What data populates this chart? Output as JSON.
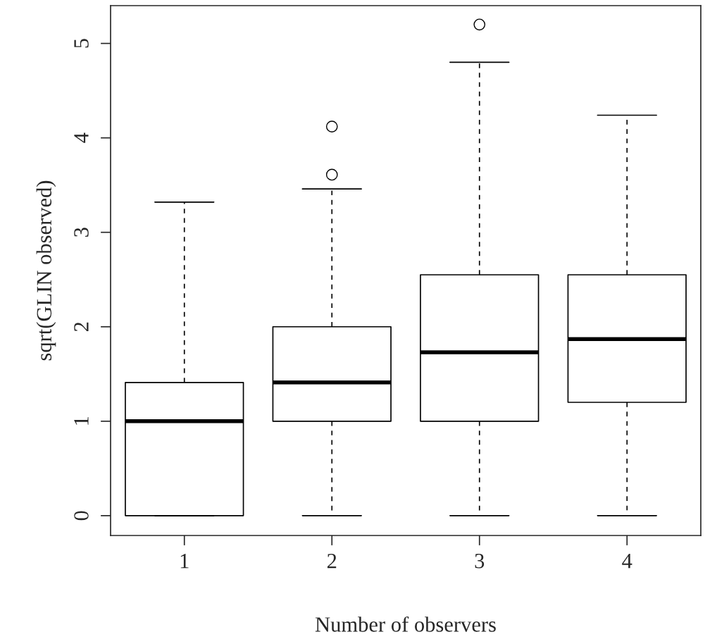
{
  "chart_data": {
    "type": "box",
    "xlabel": "Number of observers",
    "ylabel": "sqrt(GLIN observed)",
    "categories": [
      "1",
      "2",
      "3",
      "4"
    ],
    "boxes": [
      {
        "low": 0,
        "q1": 0,
        "median": 1.0,
        "q3": 1.41,
        "high": 3.32
      },
      {
        "low": 0,
        "q1": 1.0,
        "median": 1.41,
        "q3": 2.0,
        "high": 3.46,
        "outliers": [
          3.61,
          4.12
        ]
      },
      {
        "low": 0,
        "q1": 1.0,
        "median": 1.73,
        "q3": 2.55,
        "high": 4.8,
        "outliers": [
          5.2
        ]
      },
      {
        "low": 0,
        "q1": 1.2,
        "median": 1.87,
        "q3": 2.55,
        "high": 4.24
      }
    ],
    "ylim": [
      -0.21,
      5.4
    ],
    "yticks": [
      0,
      1,
      2,
      3,
      4,
      5
    ]
  }
}
